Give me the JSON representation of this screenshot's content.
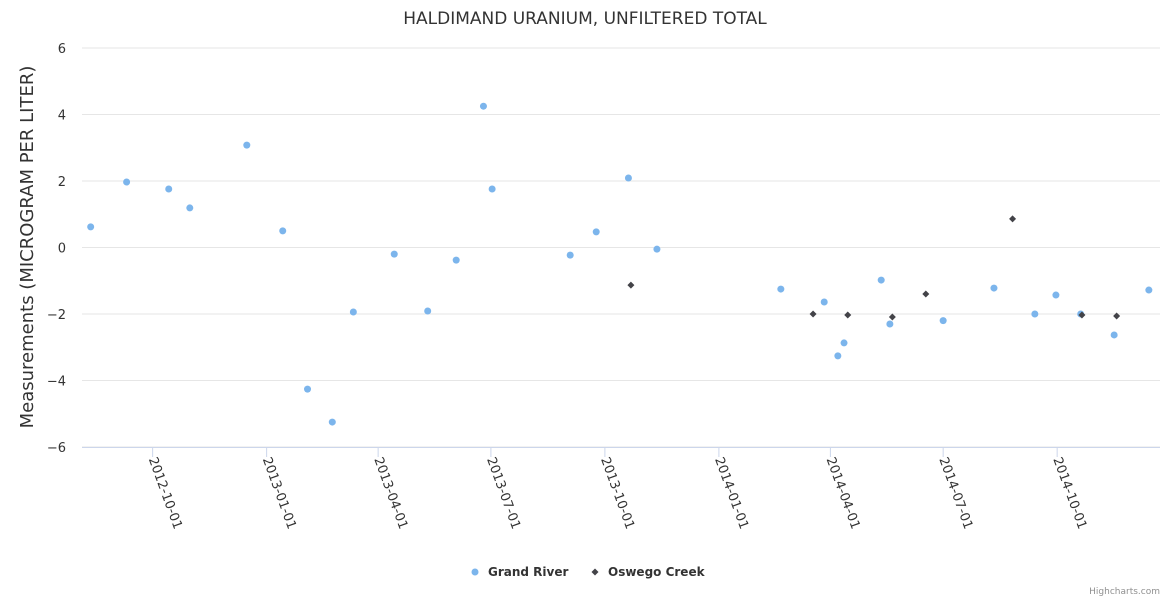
{
  "chart_data": {
    "type": "scatter",
    "title": "HALDIMAND URANIUM, UNFILTERED TOTAL",
    "xlabel": "",
    "ylabel": "Measurements (MICROGRAM PER LITER)",
    "ylim": [
      -6,
      6
    ],
    "yticks": [
      "6",
      "4",
      "2",
      "0",
      "−2",
      "−4",
      "−6"
    ],
    "ytick_values": [
      6,
      4,
      2,
      0,
      -2,
      -4,
      -6
    ],
    "xlim": [
      "2012-08-05",
      "2014-12-23"
    ],
    "xticks": [
      "2012-10-01",
      "2013-01-01",
      "2013-04-01",
      "2013-07-01",
      "2013-10-01",
      "2014-01-01",
      "2014-04-01",
      "2014-07-01",
      "2014-10-01"
    ],
    "grid": true,
    "legend_position": "bottom-center",
    "series": [
      {
        "name": "Grand River",
        "color": "#7cb5ec",
        "marker": "circle",
        "points": [
          [
            "2012-08-12",
            0.62
          ],
          [
            "2012-09-10",
            1.97
          ],
          [
            "2012-10-14",
            1.76
          ],
          [
            "2012-10-31",
            1.19
          ],
          [
            "2012-12-16",
            3.08
          ],
          [
            "2013-01-14",
            0.5
          ],
          [
            "2013-02-03",
            -4.26
          ],
          [
            "2013-02-23",
            -5.25
          ],
          [
            "2013-03-12",
            -1.94
          ],
          [
            "2013-04-14",
            -0.2
          ],
          [
            "2013-05-11",
            -1.91
          ],
          [
            "2013-06-03",
            -0.38
          ],
          [
            "2013-06-25",
            4.25
          ],
          [
            "2013-07-02",
            1.76
          ],
          [
            "2013-09-03",
            -0.23
          ],
          [
            "2013-09-24",
            0.47
          ],
          [
            "2013-10-20",
            2.09
          ],
          [
            "2013-11-12",
            -0.05
          ],
          [
            "2014-02-20",
            -1.25
          ],
          [
            "2014-03-27",
            -1.64
          ],
          [
            "2014-04-07",
            -3.26
          ],
          [
            "2014-04-12",
            -2.87
          ],
          [
            "2014-05-12",
            -0.98
          ],
          [
            "2014-05-19",
            -2.3
          ],
          [
            "2014-07-01",
            -2.2
          ],
          [
            "2014-08-11",
            -1.22
          ],
          [
            "2014-09-13",
            -2.0
          ],
          [
            "2014-09-30",
            -1.43
          ],
          [
            "2014-10-20",
            -2.0
          ],
          [
            "2014-11-16",
            -2.63
          ],
          [
            "2014-12-14",
            -1.28
          ]
        ]
      },
      {
        "name": "Oswego Creek",
        "color": "#434348",
        "marker": "diamond",
        "points": [
          [
            "2013-10-22",
            -1.13
          ],
          [
            "2014-03-18",
            -2.0
          ],
          [
            "2014-04-15",
            -2.03
          ],
          [
            "2014-05-21",
            -2.09
          ],
          [
            "2014-06-17",
            -1.4
          ],
          [
            "2014-08-26",
            0.86
          ],
          [
            "2014-10-21",
            -2.03
          ],
          [
            "2014-11-18",
            -2.06
          ]
        ]
      }
    ]
  },
  "credits": "Highcharts.com"
}
